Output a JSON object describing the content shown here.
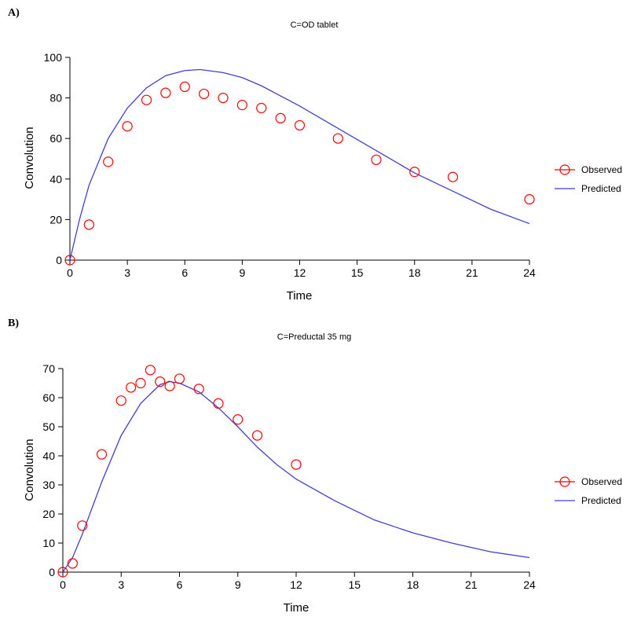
{
  "colors": {
    "observed": "#ff0000",
    "predicted": "#3f3fd8",
    "axis": "#000000"
  },
  "chart_data": [
    {
      "type": "scatter+line",
      "panel_label": "A)",
      "title": "C=OD tablet",
      "xlabel": "Time",
      "ylabel": "Convolution",
      "xlim": [
        0,
        24
      ],
      "ylim": [
        0,
        100
      ],
      "xticks": [
        0,
        3,
        6,
        9,
        12,
        15,
        18,
        21,
        24
      ],
      "yticks": [
        0,
        20,
        40,
        60,
        80,
        100
      ],
      "legend": {
        "placement": "right",
        "entries": [
          "Observed",
          "Predicted"
        ]
      },
      "series": [
        {
          "name": "Observed",
          "kind": "marker",
          "x": [
            0,
            1,
            2,
            3,
            4,
            5,
            6,
            7,
            8,
            9,
            10,
            11,
            12,
            14,
            16,
            18,
            20,
            24
          ],
          "y": [
            0,
            17.5,
            48.5,
            66,
            79,
            82.5,
            85.5,
            82,
            80,
            76.5,
            75,
            70,
            66.5,
            60,
            49.5,
            43.5,
            41,
            30
          ]
        },
        {
          "name": "Predicted",
          "kind": "line",
          "x": [
            0,
            0.5,
            1,
            2,
            3,
            4,
            5,
            6,
            6.8,
            8,
            9,
            10,
            11,
            12,
            14,
            16,
            18,
            20,
            22,
            24
          ],
          "y": [
            0,
            20,
            37,
            60,
            75,
            85,
            91,
            93.5,
            94,
            92.5,
            90,
            86,
            81,
            76,
            65,
            54,
            43,
            34,
            25,
            18
          ]
        }
      ]
    },
    {
      "type": "scatter+line",
      "panel_label": "B)",
      "title": "C=Preductal 35 mg",
      "xlabel": "Time",
      "ylabel": "Convolution",
      "xlim": [
        0,
        24
      ],
      "ylim": [
        0,
        70
      ],
      "xticks": [
        0,
        3,
        6,
        9,
        12,
        15,
        18,
        21,
        24
      ],
      "yticks": [
        0,
        10,
        20,
        30,
        40,
        50,
        60,
        70
      ],
      "legend": {
        "placement": "right",
        "entries": [
          "Observed",
          "Predicted"
        ]
      },
      "series": [
        {
          "name": "Observed",
          "kind": "marker",
          "x": [
            0,
            0.5,
            1,
            2,
            3,
            3.5,
            4,
            4.5,
            5,
            5.5,
            6,
            7,
            8,
            9,
            10,
            12
          ],
          "y": [
            0,
            3,
            16,
            40.5,
            59,
            63.5,
            65,
            69.5,
            65.5,
            64,
            66.5,
            63,
            58,
            52.5,
            47,
            37
          ]
        },
        {
          "name": "Predicted",
          "kind": "line",
          "x": [
            0,
            0.5,
            1,
            2,
            3,
            4,
            5,
            5.5,
            6,
            7,
            8,
            9,
            10,
            11,
            12,
            14,
            16,
            18,
            20,
            22,
            24
          ],
          "y": [
            0,
            5,
            13,
            31,
            47,
            58,
            64.5,
            65.5,
            65,
            62,
            56.5,
            50,
            43,
            37,
            32,
            24.5,
            18,
            13.5,
            10,
            7,
            5
          ]
        }
      ]
    }
  ]
}
